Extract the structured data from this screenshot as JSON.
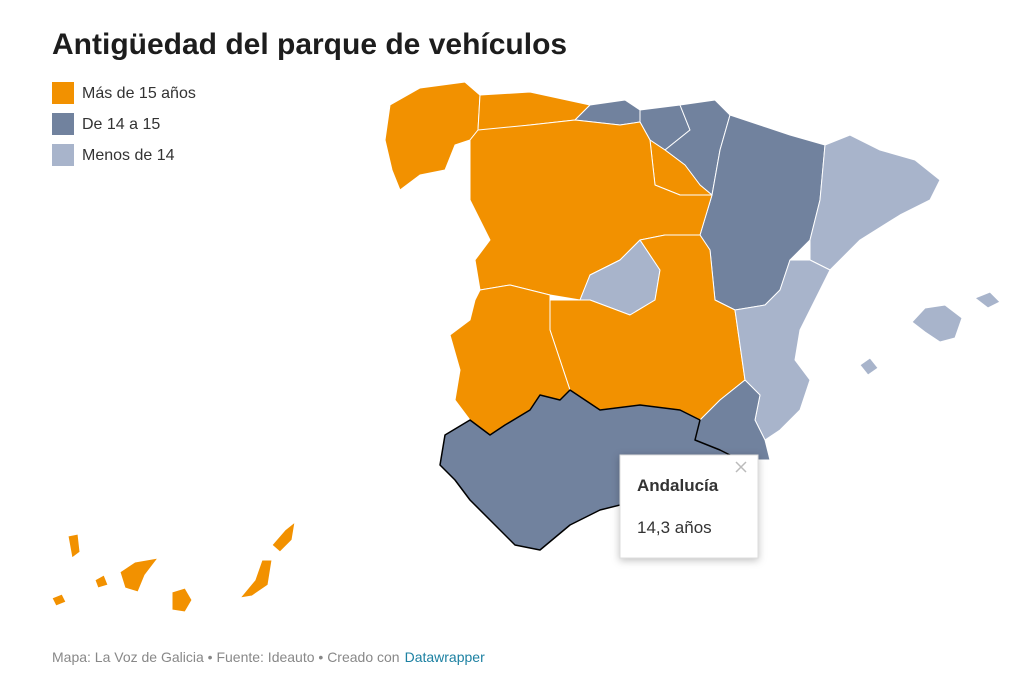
{
  "title": "Antigüedad del parque de vehículos",
  "legend": {
    "items": [
      {
        "label": "Más de 15 años",
        "color": "#f29100"
      },
      {
        "label": "De 14 a 15",
        "color": "#71829e"
      },
      {
        "label": "Menos de 14",
        "color": "#a8b4cb"
      }
    ]
  },
  "tooltip": {
    "title": "Andalucía",
    "value": "14,3 años"
  },
  "footer": {
    "text": "Mapa: La Voz de Galicia • Fuente: Ideauto • Creado con",
    "link": "Datawrapper"
  }
}
